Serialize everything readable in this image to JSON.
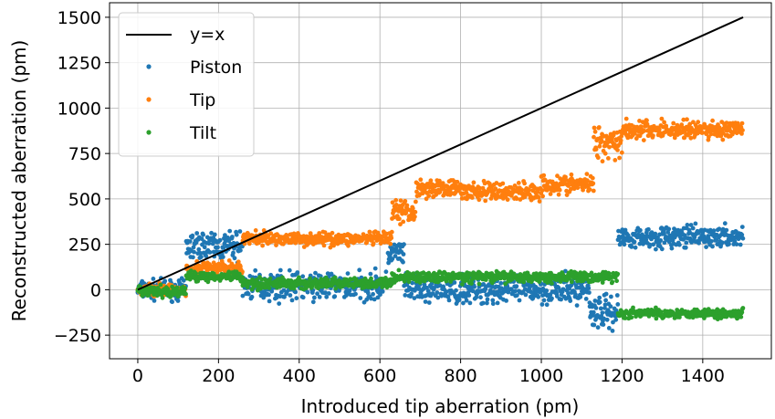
{
  "chart_data": {
    "type": "scatter",
    "xlabel": "Introduced tip aberration (pm)",
    "ylabel": "Reconstructed aberration (pm)",
    "xlim": [
      -70,
      1570
    ],
    "ylim": [
      -380,
      1580
    ],
    "xticks": [
      0,
      200,
      400,
      600,
      800,
      1000,
      1200,
      1400
    ],
    "yticks": [
      -250,
      0,
      250,
      500,
      750,
      1000,
      1250,
      1500
    ],
    "ytick_labels": [
      "−250",
      "0",
      "250",
      "500",
      "750",
      "1000",
      "1250",
      "1500"
    ],
    "grid": true,
    "legend_position": "top-left",
    "reference_line": {
      "name": "y=x",
      "color": "#000000",
      "points": [
        [
          0,
          0
        ],
        [
          1500,
          1500
        ]
      ]
    },
    "series": [
      {
        "name": "Piston",
        "color": "#1f77b4",
        "segments": [
          {
            "x_range": [
              0,
              120
            ],
            "mean": 0,
            "spread": 45
          },
          {
            "x_range": [
              120,
              260
            ],
            "mean": 240,
            "spread": 70
          },
          {
            "x_range": [
              260,
              620
            ],
            "mean": 20,
            "spread": 65
          },
          {
            "x_range": [
              620,
              660
            ],
            "mean": 200,
            "spread": 60
          },
          {
            "x_range": [
              660,
              1120
            ],
            "mean": 0,
            "spread": 65
          },
          {
            "x_range": [
              1120,
              1190
            ],
            "mean": -120,
            "spread": 80
          },
          {
            "x_range": [
              1190,
              1500
            ],
            "mean": 290,
            "spread": 50
          }
        ]
      },
      {
        "name": "Tip",
        "color": "#ff7f0e",
        "segments": [
          {
            "x_range": [
              0,
              120
            ],
            "mean": 0,
            "spread": 30
          },
          {
            "x_range": [
              120,
              260
            ],
            "mean": 120,
            "spread": 30
          },
          {
            "x_range": [
              260,
              630
            ],
            "mean": 280,
            "spread": 30
          },
          {
            "x_range": [
              630,
              690
            ],
            "mean": 430,
            "spread": 60
          },
          {
            "x_range": [
              690,
              800
            ],
            "mean": 560,
            "spread": 40
          },
          {
            "x_range": [
              800,
              1000
            ],
            "mean": 540,
            "spread": 45
          },
          {
            "x_range": [
              1000,
              1130
            ],
            "mean": 580,
            "spread": 45
          },
          {
            "x_range": [
              1130,
              1200
            ],
            "mean": 820,
            "spread": 80
          },
          {
            "x_range": [
              1200,
              1500
            ],
            "mean": 880,
            "spread": 45
          }
        ]
      },
      {
        "name": "Tilt",
        "color": "#2ca02c",
        "segments": [
          {
            "x_range": [
              0,
              120
            ],
            "mean": -10,
            "spread": 25
          },
          {
            "x_range": [
              120,
              260
            ],
            "mean": 75,
            "spread": 25
          },
          {
            "x_range": [
              260,
              630
            ],
            "mean": 35,
            "spread": 25
          },
          {
            "x_range": [
              630,
              1190
            ],
            "mean": 70,
            "spread": 25
          },
          {
            "x_range": [
              1190,
              1500
            ],
            "mean": -130,
            "spread": 22
          }
        ]
      }
    ]
  }
}
